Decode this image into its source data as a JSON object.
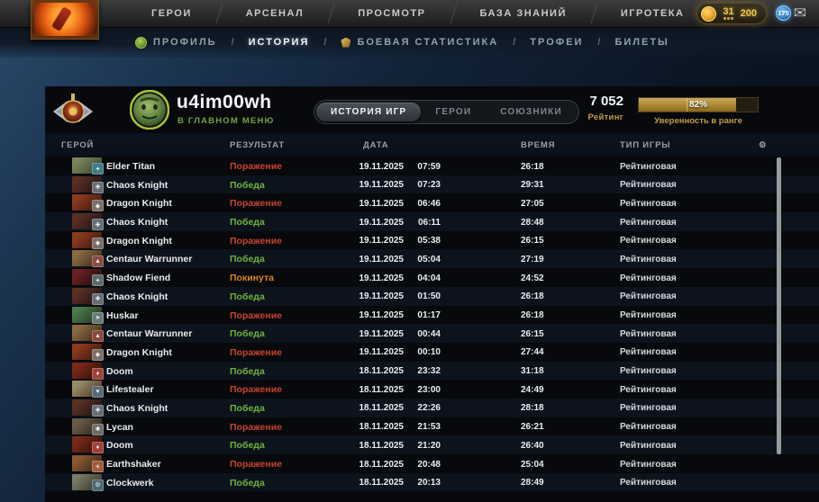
{
  "top_nav": {
    "items": [
      "ГЕРОИ",
      "АРСЕНАЛ",
      "ПРОСМОТР",
      "БАЗА ЗНАНИЙ",
      "ИГРОТЕКА"
    ],
    "currency": {
      "value1": "31",
      "value2": "200"
    },
    "mail_badge": "175"
  },
  "sub_nav": {
    "separator": "/",
    "items": [
      {
        "label": "ПРОФИЛЬ",
        "icon": "profile",
        "active": false
      },
      {
        "label": "ИСТОРИЯ",
        "icon": "",
        "active": true
      },
      {
        "label": "БОЕВАЯ СТАТИСТИКА",
        "icon": "shield",
        "active": false
      },
      {
        "label": "ТРОФЕИ",
        "icon": "",
        "active": false
      },
      {
        "label": "БИЛЕТЫ",
        "icon": "",
        "active": false
      }
    ]
  },
  "profile": {
    "username": "u4im00wh",
    "status": "В ГЛАВНОМ МЕНЮ",
    "tabs": [
      {
        "label": "ИСТОРИЯ ИГР",
        "active": true
      },
      {
        "label": "ГЕРОИ",
        "active": false
      },
      {
        "label": "СОЮЗНИКИ",
        "active": false
      }
    ],
    "rating_value": "7 052",
    "rating_label": "Рейтинг",
    "confidence_percent": 82,
    "confidence_text": "82%",
    "confidence_label": "Уверенность в ранге",
    "accent_gold": "#c39b49",
    "win_color": "#6db43c",
    "loss_color": "#c8432e",
    "abandon_color": "#dd831f"
  },
  "table": {
    "columns": {
      "hero": "ГЕРОЙ",
      "result": "РЕЗУЛЬТАТ",
      "date": "ДАТА",
      "time": "ВРЕМЯ",
      "type": "ТИП ИГРЫ"
    },
    "rows": [
      {
        "hero": "Elder Titan",
        "result": "Поражение",
        "result_class": "loss",
        "date": "19.11.2025",
        "time": "07:59",
        "duration": "26:18",
        "type": "Рейтинговая",
        "portrait": [
          "#7a8559",
          "#33402f"
        ],
        "facet": "#3f7d84",
        "facet_glyph": "✦"
      },
      {
        "hero": "Chaos Knight",
        "result": "Победа",
        "result_class": "win",
        "date": "19.11.2025",
        "time": "07:23",
        "duration": "29:31",
        "type": "Рейтинговая",
        "portrait": [
          "#5a2f24",
          "#1c1114"
        ],
        "facet": "#646e74",
        "facet_glyph": "✚"
      },
      {
        "hero": "Dragon Knight",
        "result": "Поражение",
        "result_class": "loss",
        "date": "19.11.2025",
        "time": "06:46",
        "duration": "27:05",
        "type": "Рейтинговая",
        "portrait": [
          "#8a3a1e",
          "#36140e"
        ],
        "facet": "#7a6f66",
        "facet_glyph": "◆"
      },
      {
        "hero": "Chaos Knight",
        "result": "Победа",
        "result_class": "win",
        "date": "19.11.2025",
        "time": "06:11",
        "duration": "28:48",
        "type": "Рейтинговая",
        "portrait": [
          "#5a2f24",
          "#1c1114"
        ],
        "facet": "#646e74",
        "facet_glyph": "✚"
      },
      {
        "hero": "Dragon Knight",
        "result": "Поражение",
        "result_class": "loss",
        "date": "19.11.2025",
        "time": "05:38",
        "duration": "26:15",
        "type": "Рейтинговая",
        "portrait": [
          "#8a3a1e",
          "#36140e"
        ],
        "facet": "#7a6f66",
        "facet_glyph": "◆"
      },
      {
        "hero": "Centaur Warrunner",
        "result": "Победа",
        "result_class": "win",
        "date": "19.11.2025",
        "time": "05:04",
        "duration": "27:19",
        "type": "Рейтинговая",
        "portrait": [
          "#8a6a42",
          "#362718"
        ],
        "facet": "#8a4a42",
        "facet_glyph": "▲"
      },
      {
        "hero": "Shadow Fiend",
        "result": "Покинута",
        "result_class": "abandon",
        "date": "19.11.2025",
        "time": "04:04",
        "duration": "24:52",
        "type": "Рейтинговая",
        "portrait": [
          "#6a2020",
          "#180c0c"
        ],
        "facet": "#5f6a6a",
        "facet_glyph": "✦"
      },
      {
        "hero": "Chaos Knight",
        "result": "Победа",
        "result_class": "win",
        "date": "19.11.2025",
        "time": "01:50",
        "duration": "26:18",
        "type": "Рейтинговая",
        "portrait": [
          "#5a2f24",
          "#1c1114"
        ],
        "facet": "#646e74",
        "facet_glyph": "✚"
      },
      {
        "hero": "Huskar",
        "result": "Поражение",
        "result_class": "loss",
        "date": "19.11.2025",
        "time": "01:17",
        "duration": "26:18",
        "type": "Рейтинговая",
        "portrait": [
          "#4a7a4a",
          "#22301c"
        ],
        "facet": "#6a7a7a",
        "facet_glyph": "➤"
      },
      {
        "hero": "Centaur Warrunner",
        "result": "Победа",
        "result_class": "win",
        "date": "19.11.2025",
        "time": "00:44",
        "duration": "26:15",
        "type": "Рейтинговая",
        "portrait": [
          "#8a6a42",
          "#362718"
        ],
        "facet": "#8a4a42",
        "facet_glyph": "▲"
      },
      {
        "hero": "Dragon Knight",
        "result": "Поражение",
        "result_class": "loss",
        "date": "19.11.2025",
        "time": "00:10",
        "duration": "27:44",
        "type": "Рейтинговая",
        "portrait": [
          "#8a3a1e",
          "#36140e"
        ],
        "facet": "#7a6f66",
        "facet_glyph": "◆"
      },
      {
        "hero": "Doom",
        "result": "Победа",
        "result_class": "win",
        "date": "18.11.2025",
        "time": "23:32",
        "duration": "31:18",
        "type": "Рейтинговая",
        "portrait": [
          "#7a2a18",
          "#260e08"
        ],
        "facet": "#a04038",
        "facet_glyph": "♦"
      },
      {
        "hero": "Lifestealer",
        "result": "Поражение",
        "result_class": "loss",
        "date": "18.11.2025",
        "time": "23:00",
        "duration": "24:49",
        "type": "Рейтинговая",
        "portrait": [
          "#9a8a66",
          "#443522"
        ],
        "facet": "#5a6a74",
        "facet_glyph": "♥"
      },
      {
        "hero": "Chaos Knight",
        "result": "Победа",
        "result_class": "win",
        "date": "18.11.2025",
        "time": "22:26",
        "duration": "28:18",
        "type": "Рейтинговая",
        "portrait": [
          "#5a2f24",
          "#1c1114"
        ],
        "facet": "#646e74",
        "facet_glyph": "✚"
      },
      {
        "hero": "Lycan",
        "result": "Поражение",
        "result_class": "loss",
        "date": "18.11.2025",
        "time": "21:53",
        "duration": "26:21",
        "type": "Рейтинговая",
        "portrait": [
          "#6a5a48",
          "#29221c"
        ],
        "facet": "#6f6a64",
        "facet_glyph": "✱"
      },
      {
        "hero": "Doom",
        "result": "Победа",
        "result_class": "win",
        "date": "18.11.2025",
        "time": "21:20",
        "duration": "26:40",
        "type": "Рейтинговая",
        "portrait": [
          "#7a2a18",
          "#260e08"
        ],
        "facet": "#a04038",
        "facet_glyph": "♦"
      },
      {
        "hero": "Earthshaker",
        "result": "Поражение",
        "result_class": "loss",
        "date": "18.11.2025",
        "time": "20:48",
        "duration": "25:04",
        "type": "Рейтинговая",
        "portrait": [
          "#8a5a32",
          "#332114"
        ],
        "facet": "#a05a3a",
        "facet_glyph": "☀"
      },
      {
        "hero": "Clockwerk",
        "result": "Победа",
        "result_class": "win",
        "date": "18.11.2025",
        "time": "20:13",
        "duration": "28:49",
        "type": "Рейтинговая",
        "portrait": [
          "#7a7a66",
          "#2e2c24"
        ],
        "facet": "#4a6a70",
        "facet_glyph": "⚙"
      }
    ]
  }
}
